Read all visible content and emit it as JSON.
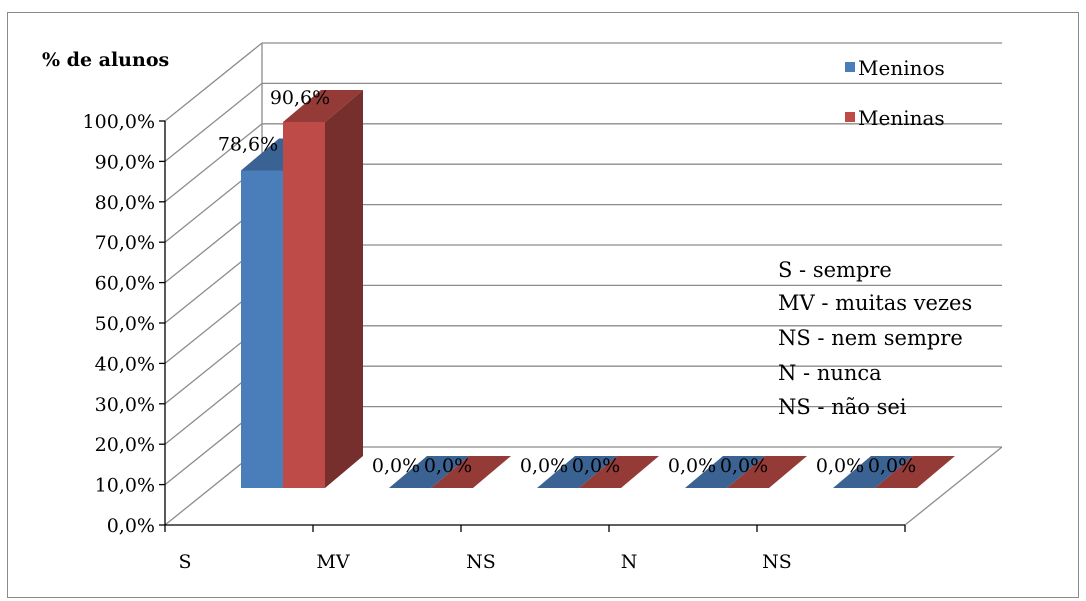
{
  "chart_data": {
    "type": "bar",
    "title": "% de alunos",
    "categories": [
      "S",
      "MV",
      "NS",
      "N",
      "NS"
    ],
    "series": [
      {
        "name": "Meninos",
        "values": [
          78.6,
          0.0,
          0.0,
          0.0,
          0.0
        ],
        "color": "#4a7ebb",
        "label_format": [
          "78,6%",
          "0,0%",
          "0,0%",
          "0,0%",
          "0,0%"
        ]
      },
      {
        "name": "Meninas",
        "values": [
          90.6,
          0.0,
          0.0,
          0.0,
          0.0
        ],
        "color": "#be4b48",
        "label_format": [
          "90,6%",
          "0,0%",
          "0,0%",
          "0,0%",
          "0,0%"
        ]
      }
    ],
    "ylim": [
      0,
      100
    ],
    "yticks": [
      "0,0%",
      "10,0%",
      "20,0%",
      "30,0%",
      "40,0%",
      "50,0%",
      "60,0%",
      "70,0%",
      "80,0%",
      "90,0%",
      "100,0%"
    ],
    "grid": true,
    "style": "3d-column",
    "legend_position": "top-right",
    "notes": [
      "S - sempre",
      "MV - muitas vezes",
      "NS - nem sempre",
      "N - nunca",
      "NS - não sei"
    ]
  }
}
